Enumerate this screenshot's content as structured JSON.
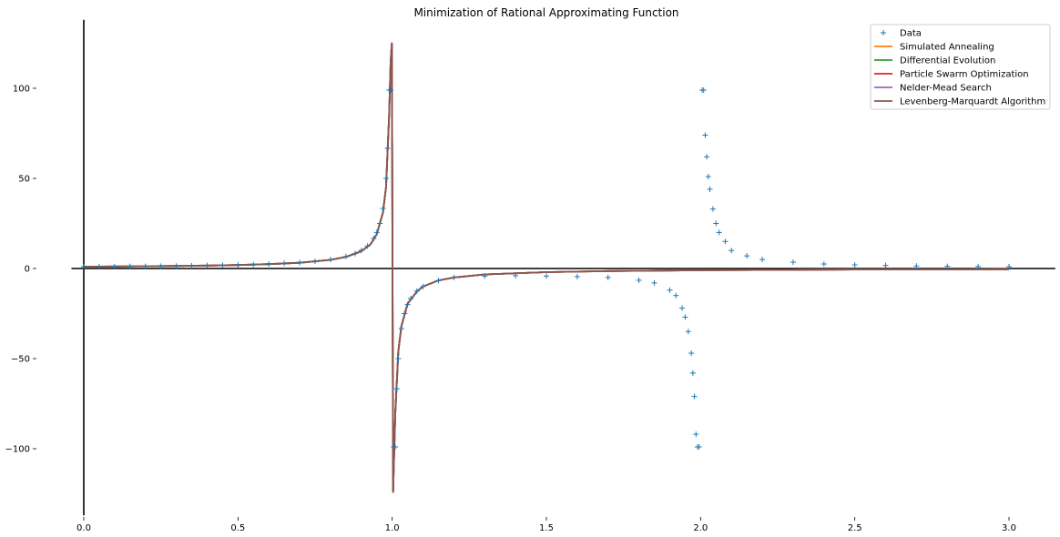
{
  "chart_data": {
    "type": "line",
    "title": "Minimization of Rational Approximating Function",
    "xlabel": "",
    "ylabel": "",
    "xlim": [
      -0.04,
      3.15
    ],
    "ylim": [
      -137,
      138
    ],
    "grid": false,
    "legend_position": "top-right",
    "x_ticks": [
      0.0,
      0.5,
      1.0,
      1.5,
      2.0,
      2.5,
      3.0
    ],
    "x_tick_labels": [
      "0.0",
      "0.5",
      "1.0",
      "1.5",
      "2.0",
      "2.5",
      "3.0"
    ],
    "y_ticks": [
      -100,
      -50,
      0,
      50,
      100
    ],
    "y_tick_labels": [
      "−100",
      "−50",
      "0",
      "50",
      "100"
    ],
    "reference_lines": {
      "x": 0,
      "y": 0
    },
    "data_series": {
      "name": "Data",
      "marker": "+",
      "color": "#1f77b4",
      "x": [
        0.0,
        0.05,
        0.1,
        0.15,
        0.2,
        0.25,
        0.3,
        0.35,
        0.4,
        0.45,
        0.5,
        0.55,
        0.6,
        0.65,
        0.7,
        0.75,
        0.8,
        0.85,
        0.88,
        0.9,
        0.92,
        0.94,
        0.95,
        0.96,
        0.97,
        0.98,
        0.985,
        0.99,
        0.995,
        1.005,
        1.01,
        1.015,
        1.02,
        1.03,
        1.04,
        1.05,
        1.06,
        1.08,
        1.1,
        1.15,
        1.2,
        1.3,
        1.4,
        1.5,
        1.6,
        1.7,
        1.8,
        1.85,
        1.9,
        1.92,
        1.94,
        1.95,
        1.96,
        1.97,
        1.975,
        1.98,
        1.985,
        1.99,
        1.995,
        2.005,
        2.01,
        2.015,
        2.02,
        2.025,
        2.03,
        2.04,
        2.05,
        2.06,
        2.08,
        2.1,
        2.15,
        2.2,
        2.3,
        2.4,
        2.5,
        2.6,
        2.7,
        2.8,
        2.9,
        3.0
      ],
      "y": [
        1.0,
        1.0,
        1.1,
        1.2,
        1.2,
        1.3,
        1.4,
        1.5,
        1.7,
        1.8,
        2.0,
        2.2,
        2.5,
        2.9,
        3.3,
        4.0,
        5.0,
        6.7,
        8.3,
        10.0,
        12.5,
        16.7,
        20.0,
        25.0,
        33.3,
        50.0,
        66.7,
        99.0,
        99.0,
        -99.0,
        -99.0,
        -66.7,
        -50.0,
        -33.3,
        -25.0,
        -20.0,
        -16.7,
        -12.5,
        -10.0,
        -6.7,
        -5.0,
        -4.2,
        -4.0,
        -4.2,
        -4.5,
        -5.0,
        -6.5,
        -8.0,
        -12.0,
        -15.0,
        -22.0,
        -27.0,
        -35.0,
        -47.0,
        -58.0,
        -71.0,
        -92.0,
        -99.0,
        -99.0,
        99.0,
        99.0,
        74.0,
        62.0,
        51.0,
        44.0,
        33.0,
        25.0,
        20.0,
        15.0,
        10.0,
        7.0,
        5.0,
        3.5,
        2.5,
        2.0,
        1.7,
        1.4,
        1.2,
        1.1,
        1.0
      ]
    },
    "fit_x": [
      0.0,
      0.1,
      0.2,
      0.3,
      0.4,
      0.5,
      0.6,
      0.7,
      0.8,
      0.85,
      0.9,
      0.93,
      0.95,
      0.97,
      0.98,
      0.99,
      0.995,
      0.999,
      1.0,
      1.003,
      1.005,
      1.01,
      1.02,
      1.03,
      1.05,
      1.08,
      1.1,
      1.15,
      1.2,
      1.3,
      1.5,
      1.7,
      2.0,
      2.5,
      3.0
    ],
    "series": [
      {
        "name": "Simulated Annealing",
        "color": "#ff7f0e",
        "values": [
          1.0,
          1.1,
          1.25,
          1.4,
          1.6,
          1.9,
          2.4,
          3.2,
          4.8,
          6.4,
          9.6,
          13.5,
          19.0,
          31.0,
          45.0,
          85.0,
          115.0,
          125.0,
          60.0,
          -124.0,
          -110.0,
          -80.0,
          -46.0,
          -32.0,
          -19.5,
          -12.8,
          -10.0,
          -6.6,
          -5.0,
          -3.3,
          -2.0,
          -1.4,
          -0.95,
          -0.55,
          -0.38
        ]
      },
      {
        "name": "Differential Evolution",
        "color": "#2ca02c",
        "values": [
          1.0,
          1.1,
          1.25,
          1.4,
          1.6,
          1.9,
          2.4,
          3.2,
          4.8,
          6.4,
          9.6,
          13.5,
          19.0,
          31.0,
          45.0,
          85.0,
          115.0,
          125.0,
          60.0,
          -124.0,
          -110.0,
          -80.0,
          -46.0,
          -32.0,
          -19.5,
          -12.8,
          -10.0,
          -6.6,
          -5.0,
          -3.3,
          -2.0,
          -1.4,
          -0.95,
          -0.55,
          -0.38
        ]
      },
      {
        "name": "Particle Swarm Optimization",
        "color": "#d62728",
        "values": [
          1.0,
          1.1,
          1.25,
          1.4,
          1.6,
          1.9,
          2.4,
          3.2,
          4.8,
          6.4,
          9.6,
          13.5,
          19.0,
          31.0,
          45.0,
          85.0,
          115.0,
          125.0,
          60.0,
          -124.0,
          -110.0,
          -80.0,
          -46.0,
          -32.0,
          -19.5,
          -12.8,
          -10.0,
          -6.6,
          -5.0,
          -3.3,
          -2.0,
          -1.4,
          -0.95,
          -0.55,
          -0.38
        ]
      },
      {
        "name": "Nelder-Mead Search",
        "color": "#9467bd",
        "values": [
          1.0,
          1.1,
          1.25,
          1.4,
          1.6,
          1.9,
          2.4,
          3.2,
          4.8,
          6.4,
          9.6,
          13.5,
          19.0,
          31.0,
          45.0,
          85.0,
          115.0,
          125.0,
          60.0,
          -124.0,
          -110.0,
          -80.0,
          -46.0,
          -32.0,
          -19.5,
          -12.8,
          -10.0,
          -6.6,
          -5.0,
          -3.3,
          -2.0,
          -1.4,
          -0.95,
          -0.55,
          -0.38
        ]
      },
      {
        "name": "Levenberg-Marquardt Algorithm",
        "color": "#8c564b",
        "values": [
          1.0,
          1.1,
          1.25,
          1.4,
          1.6,
          1.9,
          2.4,
          3.2,
          4.8,
          6.4,
          9.6,
          13.5,
          19.0,
          31.0,
          45.0,
          85.0,
          115.0,
          125.0,
          60.0,
          -124.0,
          -110.0,
          -80.0,
          -46.0,
          -32.0,
          -19.5,
          -12.8,
          -10.0,
          -6.6,
          -5.0,
          -3.3,
          -2.0,
          -1.4,
          -0.95,
          -0.55,
          -0.38
        ]
      }
    ]
  }
}
